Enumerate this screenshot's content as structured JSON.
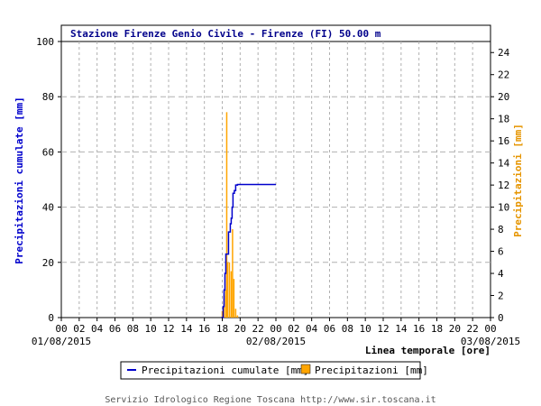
{
  "chart_data": {
    "type": "line",
    "title": "Stazione Firenze Genio Civile - Firenze (FI) 50.00 m",
    "xlabel": "Linea temporale [ore]",
    "ylabel_left": "Precipitazioni cumulate [mm]",
    "ylabel_right": "Precipitazioni [mm]",
    "xlim": [
      0,
      48
    ],
    "ylim_left": [
      0,
      100
    ],
    "ylim_right": [
      0,
      25
    ],
    "x_tick_labels": [
      "00",
      "02",
      "04",
      "06",
      "08",
      "10",
      "12",
      "14",
      "16",
      "18",
      "20",
      "22",
      "00",
      "02",
      "04",
      "06",
      "08",
      "10",
      "12",
      "14",
      "16",
      "18",
      "20",
      "22",
      "00"
    ],
    "date_labels": [
      {
        "hour": 0,
        "label": "01/08/2015"
      },
      {
        "hour": 24,
        "label": "02/08/2015"
      },
      {
        "hour": 48,
        "label": "03/08/2015"
      }
    ],
    "y_left_ticks": [
      0,
      20,
      40,
      60,
      80,
      100
    ],
    "y_right_ticks": [
      0,
      2,
      4,
      6,
      8,
      10,
      12,
      14,
      16,
      18,
      20,
      22,
      24
    ],
    "grid": true,
    "series": [
      {
        "name": "Precipitazioni cumulate [mm]",
        "axis": "left",
        "color": "#0000cc",
        "x": [
          17.9,
          18.1,
          18.2,
          18.3,
          18.4,
          18.5,
          18.7,
          18.8,
          18.9,
          19.0,
          19.1,
          19.2,
          19.35,
          19.5,
          19.7,
          20.0,
          22.0,
          24.0
        ],
        "y": [
          0,
          4,
          10,
          16,
          23,
          23,
          31,
          31,
          34,
          36,
          40,
          45,
          46,
          48,
          48.2,
          48.2,
          48.2,
          48.2
        ]
      },
      {
        "name": "Precipitazioni [mm]",
        "axis": "right",
        "color": "#ffa500",
        "type": "bar",
        "x": [
          18.0,
          18.2,
          18.4,
          18.5,
          18.6,
          18.8,
          19.0,
          19.15,
          19.3,
          19.5,
          19.7
        ],
        "y": [
          0.6,
          2.0,
          2.5,
          18.6,
          5.0,
          5.0,
          4.2,
          8.0,
          3.5,
          0.8,
          0.2
        ]
      }
    ],
    "legend": {
      "placement": "bottom",
      "items": [
        {
          "label": "Precipitazioni cumulate [mm]",
          "color": "#0000cc",
          "kind": "line"
        },
        {
          "label": "Precipitazioni [mm]",
          "color": "#ffa500",
          "kind": "bar"
        }
      ]
    }
  },
  "footer": "Servizio Idrologico Regione Toscana http://www.sir.toscana.it"
}
